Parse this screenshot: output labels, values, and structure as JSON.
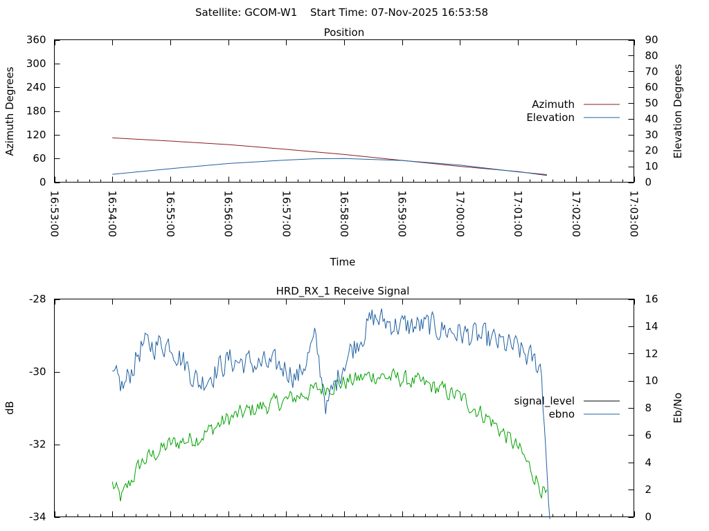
{
  "header": {
    "satellite_label": "Satellite: GCOM-W1",
    "start_time_label": "Start Time: 07-Nov-2025 16:53:58"
  },
  "chart_data": [
    {
      "type": "line",
      "title": "Position",
      "xlabel": "Time",
      "ylabel": "Azimuth Degrees",
      "y2label": "Elevation Degrees",
      "x_ticks": [
        "16:53:00",
        "16:54:00",
        "16:55:00",
        "16:56:00",
        "16:57:00",
        "16:58:00",
        "16:59:00",
        "17:00:00",
        "17:01:00",
        "17:02:00",
        "17:03:00"
      ],
      "xlim_minutes": [
        0,
        10
      ],
      "ylim": [
        0,
        360
      ],
      "y_ticks": [
        0,
        60,
        120,
        180,
        240,
        300,
        360
      ],
      "y2lim": [
        0,
        90
      ],
      "y2_ticks": [
        0,
        10,
        20,
        30,
        40,
        50,
        60,
        70,
        80,
        90
      ],
      "legend": "right",
      "series": [
        {
          "name": "Azimuth",
          "axis": "y",
          "color": "#8b1a1a",
          "x": [
            1.0,
            2.0,
            3.0,
            4.0,
            5.0,
            6.0,
            7.0,
            8.0,
            8.5
          ],
          "values": [
            112,
            104,
            95,
            83,
            70,
            55,
            40,
            27,
            17
          ]
        },
        {
          "name": "Elevation",
          "axis": "y2",
          "color": "#1f5fa0",
          "x": [
            1.0,
            2.0,
            3.0,
            4.0,
            4.5,
            5.0,
            6.0,
            7.0,
            8.0,
            8.5
          ],
          "values": [
            5,
            8.5,
            11.8,
            14,
            14.8,
            15,
            13.7,
            10.8,
            6.5,
            4.8
          ]
        }
      ]
    },
    {
      "type": "line",
      "title": "HRD_RX_1 Receive Signal",
      "xlabel": "",
      "ylabel": "dB",
      "y2label": "Eb/No",
      "xlim_minutes": [
        0,
        10
      ],
      "ylim": [
        -34,
        -28
      ],
      "y_ticks": [
        -34,
        -32,
        -30,
        -28
      ],
      "y2lim": [
        0,
        16
      ],
      "y2_ticks": [
        0,
        2,
        4,
        6,
        8,
        10,
        12,
        14,
        16
      ],
      "legend": "right",
      "series": [
        {
          "name": "signal_level",
          "axis": "y",
          "color": "#00a000",
          "legend_color": "#000000",
          "x": [
            1.0,
            1.15,
            1.5,
            2.0,
            2.5,
            3.0,
            3.5,
            4.0,
            4.5,
            5.0,
            5.5,
            6.0,
            6.5,
            7.0,
            7.5,
            8.0,
            8.3,
            8.5
          ],
          "values": [
            -33.1,
            -33.5,
            -32.5,
            -32.0,
            -31.8,
            -31.3,
            -31.0,
            -30.8,
            -30.5,
            -30.3,
            -30.1,
            -30.2,
            -30.4,
            -30.7,
            -31.3,
            -32.1,
            -32.9,
            -33.5
          ]
        },
        {
          "name": "ebno",
          "axis": "y2",
          "color": "#1f5fa0",
          "x": [
            1.0,
            1.2,
            1.5,
            2.0,
            2.5,
            3.0,
            3.5,
            4.0,
            4.2,
            4.5,
            4.7,
            5.0,
            5.5,
            6.0,
            6.5,
            7.0,
            7.5,
            8.0,
            8.4,
            8.55
          ],
          "values": [
            10.2,
            9.5,
            12.5,
            12.8,
            9.8,
            11.5,
            11.2,
            11.0,
            10.2,
            13.0,
            8.0,
            11.5,
            14.6,
            14.0,
            14.0,
            13.5,
            13.0,
            12.3,
            11.0,
            0
          ]
        }
      ]
    }
  ]
}
